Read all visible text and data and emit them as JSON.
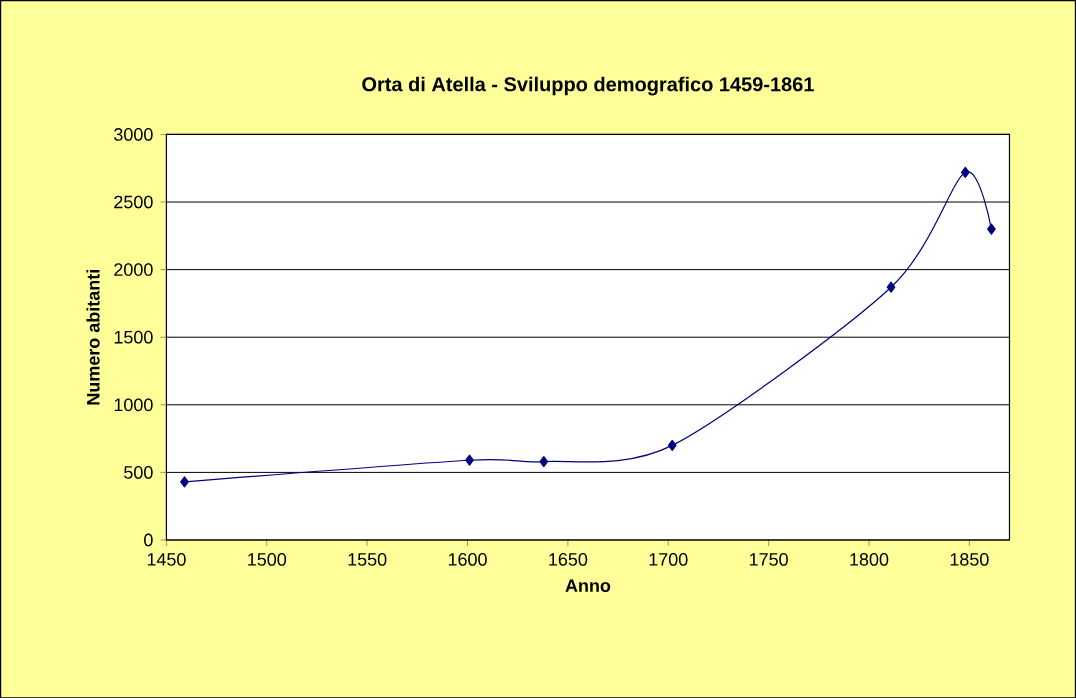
{
  "chart_data": {
    "type": "line",
    "title": "Orta di Atella - Sviluppo demografico 1459-1861",
    "xlabel": "Anno",
    "ylabel": "Numero abitanti",
    "x": [
      1459,
      1601,
      1638,
      1702,
      1811,
      1848,
      1861
    ],
    "series": [
      {
        "color": "#000080",
        "values": [
          430,
          590,
          580,
          700,
          1870,
          2720,
          2300
        ]
      }
    ],
    "xlim": [
      1450,
      1870
    ],
    "xticks": [
      1450,
      1500,
      1550,
      1600,
      1650,
      1700,
      1750,
      1800,
      1850
    ],
    "ylim": [
      0,
      3000
    ],
    "yticks": [
      0,
      500,
      1000,
      1500,
      2000,
      2500,
      3000
    ],
    "grid": "y",
    "marker": "diamond",
    "line_style": "solid"
  }
}
